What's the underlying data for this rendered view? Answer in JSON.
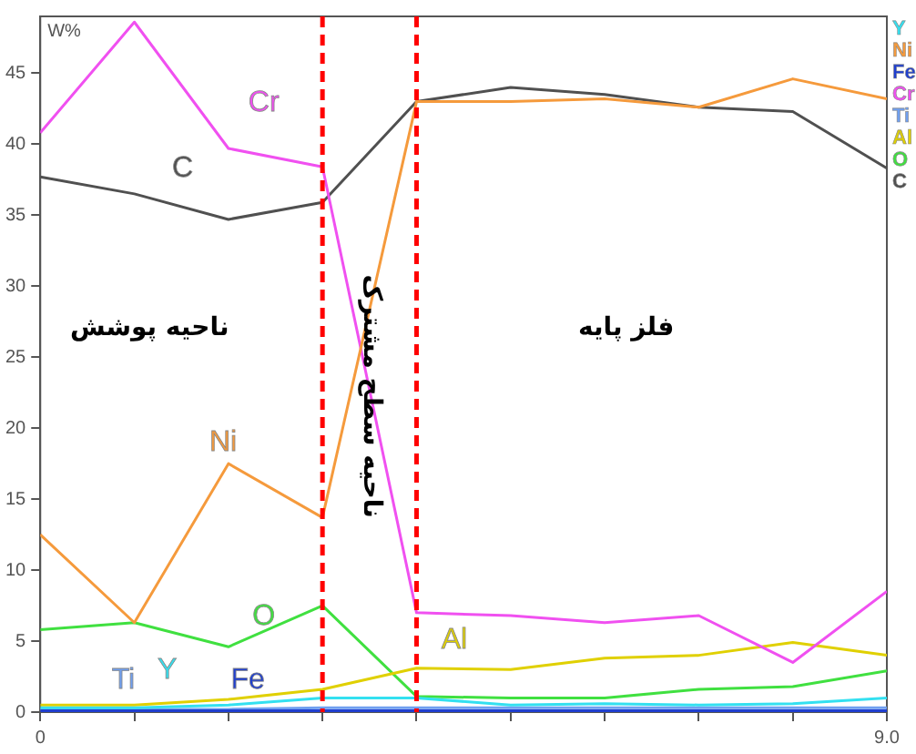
{
  "chart_data": {
    "type": "line",
    "ylabel": "W%",
    "x": [
      0,
      1,
      2,
      3,
      4,
      5,
      6,
      7,
      8,
      9
    ],
    "xlim": [
      0,
      9
    ],
    "xticks": [
      {
        "value": 0,
        "label": "0"
      },
      {
        "value": 1,
        "label": null
      },
      {
        "value": 2,
        "label": null
      },
      {
        "value": 3,
        "label": null
      },
      {
        "value": 4,
        "label": null
      },
      {
        "value": 5,
        "label": null
      },
      {
        "value": 6,
        "label": null
      },
      {
        "value": 7,
        "label": null
      },
      {
        "value": 8,
        "label": null
      },
      {
        "value": 9,
        "label": "9.0"
      }
    ],
    "ylim": [
      0,
      49
    ],
    "yticks": [
      0,
      5,
      10,
      15,
      20,
      25,
      30,
      35,
      40,
      45
    ],
    "grid": false,
    "legend": "right",
    "marker": "none",
    "series": [
      {
        "name": "Y",
        "color": "#33e0f0",
        "values": [
          0.3,
          0.3,
          0.5,
          1.0,
          1.0,
          0.5,
          0.6,
          0.5,
          0.6,
          1.0
        ]
      },
      {
        "name": "Ni",
        "color": "#f59a3c",
        "values": [
          12.5,
          6.3,
          17.5,
          13.7,
          43.0,
          43.0,
          43.2,
          42.6,
          44.6,
          43.2
        ]
      },
      {
        "name": "Fe",
        "color": "#1f3fd0",
        "values": [
          0.1,
          0.1,
          0.1,
          0.1,
          0.1,
          0.1,
          0.1,
          0.1,
          0.1,
          0.1
        ]
      },
      {
        "name": "Cr",
        "color": "#f050f0",
        "values": [
          40.8,
          48.6,
          39.7,
          38.4,
          7.0,
          6.8,
          6.3,
          6.8,
          3.5,
          8.5
        ]
      },
      {
        "name": "Ti",
        "color": "#6f9ff0",
        "values": [
          0.2,
          0.2,
          0.2,
          0.3,
          0.3,
          0.3,
          0.3,
          0.3,
          0.3,
          0.3
        ]
      },
      {
        "name": "Al",
        "color": "#e0d000",
        "values": [
          0.5,
          0.5,
          0.9,
          1.6,
          3.1,
          3.0,
          3.8,
          4.0,
          4.9,
          4.0
        ]
      },
      {
        "name": "O",
        "color": "#40e040",
        "values": [
          5.8,
          6.3,
          4.6,
          7.5,
          1.1,
          1.0,
          1.0,
          1.6,
          1.8,
          2.9
        ]
      },
      {
        "name": "C",
        "color": "#505050",
        "values": [
          37.7,
          36.5,
          34.7,
          35.9,
          43.0,
          44.0,
          43.5,
          42.6,
          42.3,
          38.3
        ]
      }
    ],
    "ref_lines": [
      {
        "axis": "x",
        "value": 3,
        "color": "#ff0000",
        "line_style": "dashed"
      },
      {
        "axis": "x",
        "value": 4,
        "color": "#ff0000",
        "line_style": "dashed"
      }
    ],
    "annotations": [
      "Y",
      "Ni",
      "Fe",
      "Cr",
      "Ti",
      "Al",
      "O",
      "C",
      "ناحیه پوشش",
      "ناحیه سطح مشترک",
      "فلز پایه"
    ]
  }
}
